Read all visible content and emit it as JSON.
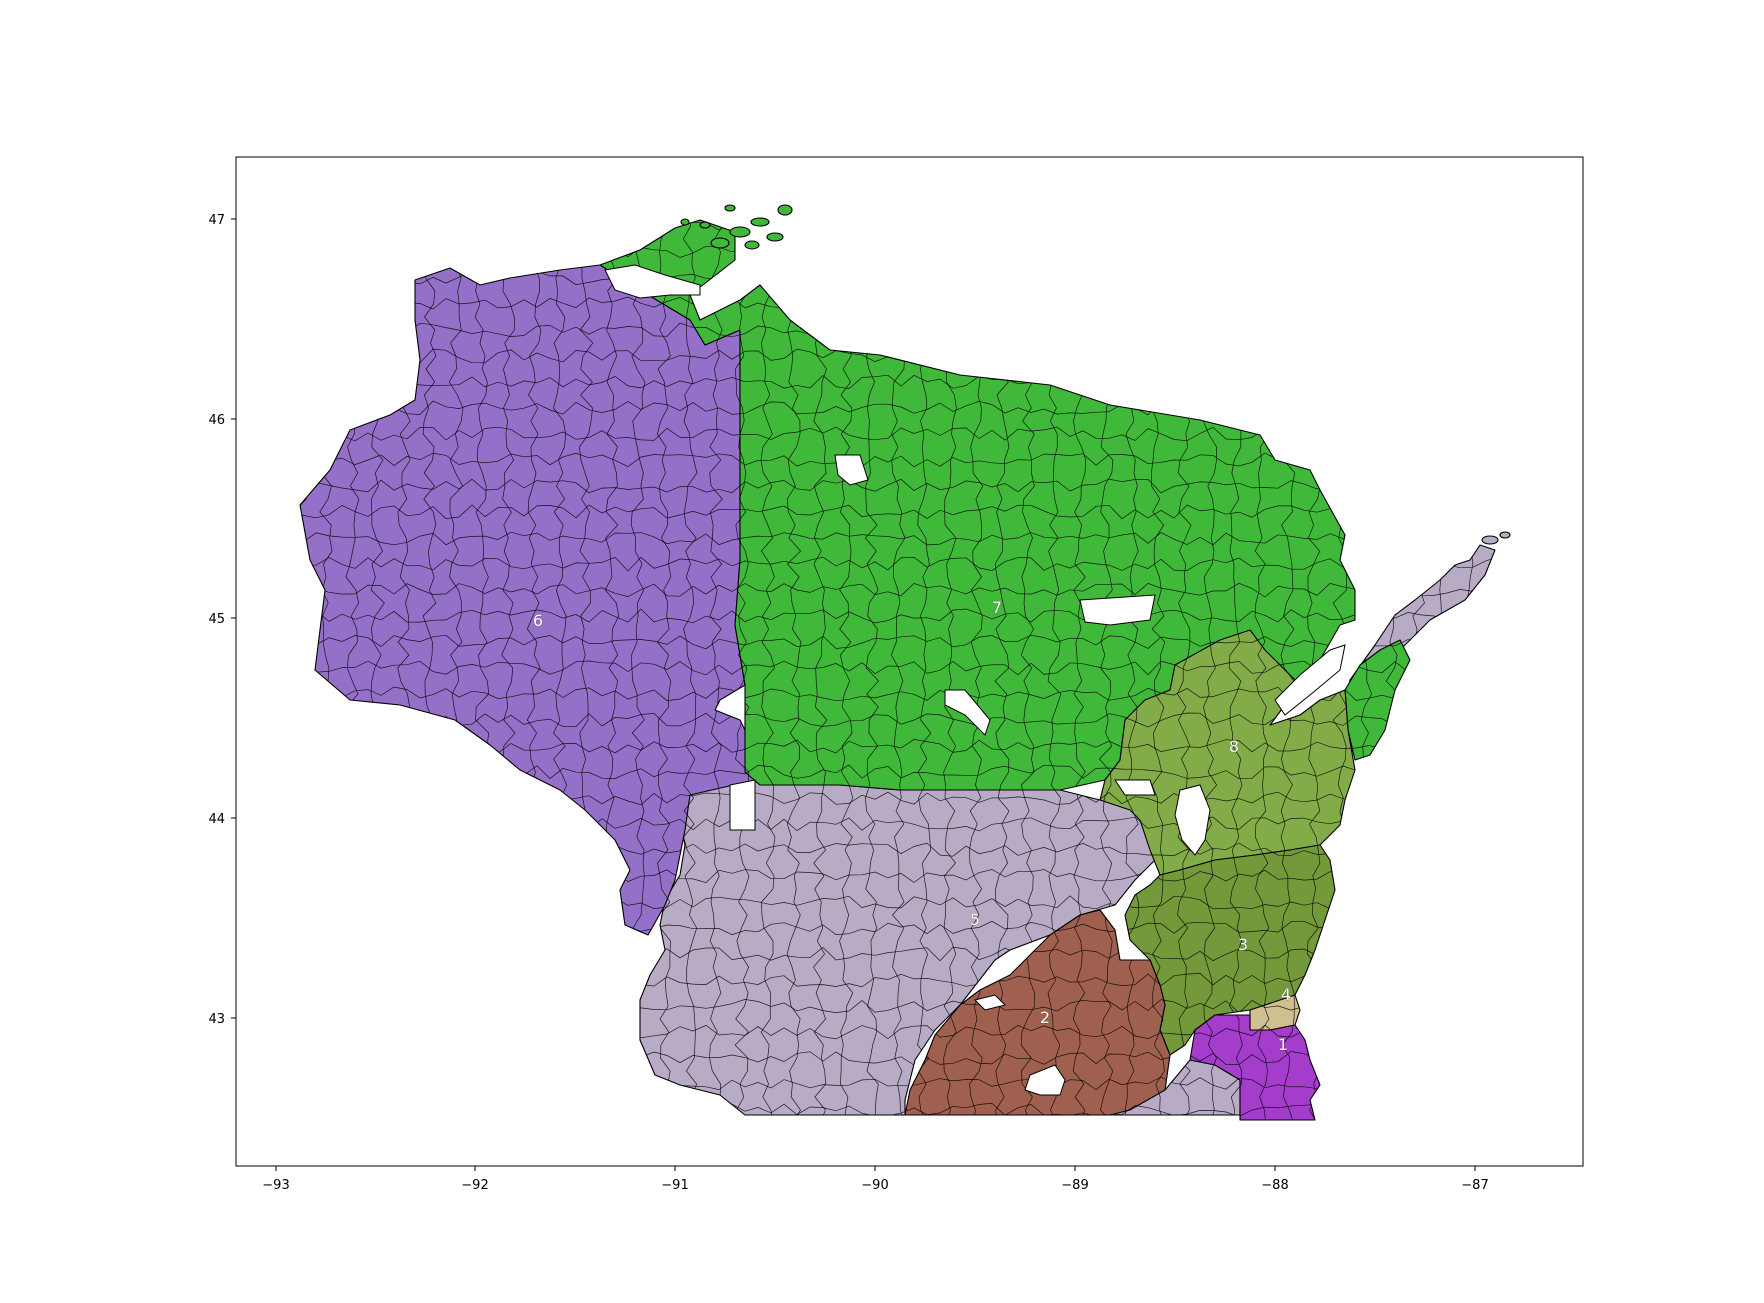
{
  "map": {
    "type": "choropleth",
    "x_ticks": [
      "−93",
      "−92",
      "−91",
      "−90",
      "−89",
      "−88",
      "−87"
    ],
    "y_ticks": [
      "47",
      "46",
      "45",
      "44",
      "43"
    ],
    "xlim": [
      -93.2,
      -86.45
    ],
    "ylim": [
      42.3,
      47.3
    ],
    "colors": {
      "d1": "#a43ccc",
      "d2": "#a0604f",
      "d3": "#74993a",
      "d4": "#cfbf91",
      "d5": "#b8abc6",
      "d6": "#9570c9",
      "d7": "#40b83a",
      "d8": "#82ac48"
    },
    "districts": [
      {
        "id": "d1",
        "label": "1"
      },
      {
        "id": "d2",
        "label": "2"
      },
      {
        "id": "d3",
        "label": "3"
      },
      {
        "id": "d4",
        "label": "4"
      },
      {
        "id": "d5",
        "label": "5"
      },
      {
        "id": "d6",
        "label": "6"
      },
      {
        "id": "d7",
        "label": "7"
      },
      {
        "id": "d8",
        "label": "8"
      }
    ]
  }
}
